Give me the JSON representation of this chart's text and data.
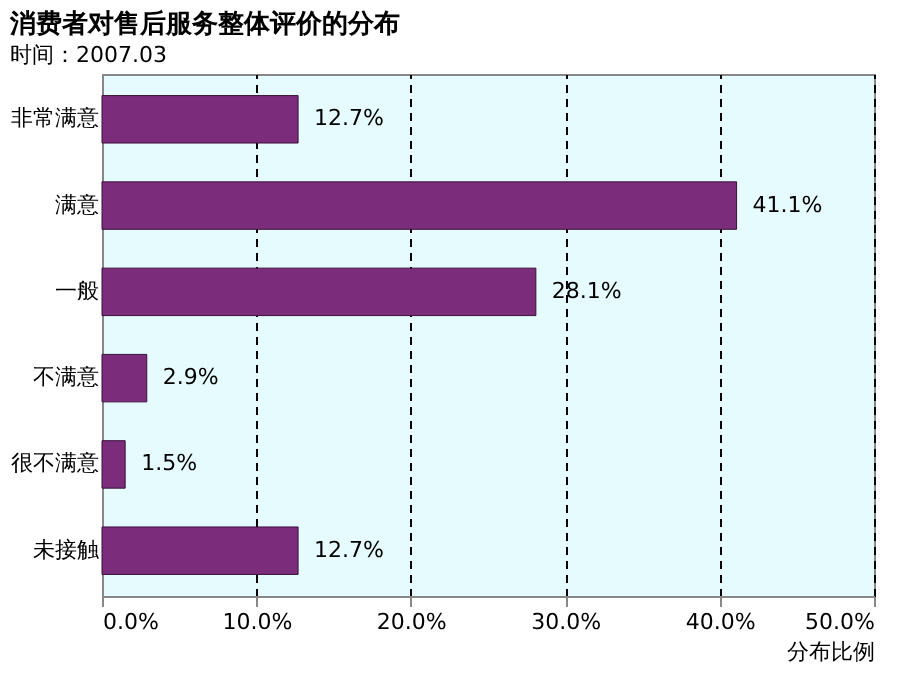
{
  "chart_data": {
    "type": "bar",
    "orientation": "horizontal",
    "title": "消费者对售后服务整体评价的分布",
    "xlabel": "分布比例",
    "categories": [
      "非常满意",
      "满意",
      "一般",
      "不满意",
      "很不满意",
      "未接触"
    ],
    "values": [
      12.7,
      41.1,
      28.1,
      2.9,
      1.5,
      12.7
    ],
    "value_labels": [
      "12.7%",
      "41.1%",
      "28.1%",
      "2.9%",
      "1.5%",
      "12.7%"
    ],
    "color": "#7b2d7b",
    "xlim": [
      0,
      50
    ],
    "xticks": [
      {
        "value": 0,
        "label": "0.0%"
      },
      {
        "value": 10,
        "label": "10.0%"
      },
      {
        "value": 20,
        "label": "20.0%"
      },
      {
        "value": 30,
        "label": "30.0%"
      },
      {
        "value": 40,
        "label": "40.0%"
      },
      {
        "value": 50,
        "label": "50.0%"
      }
    ],
    "grid": "x",
    "annotations": [
      "时间：2007.03"
    ]
  }
}
